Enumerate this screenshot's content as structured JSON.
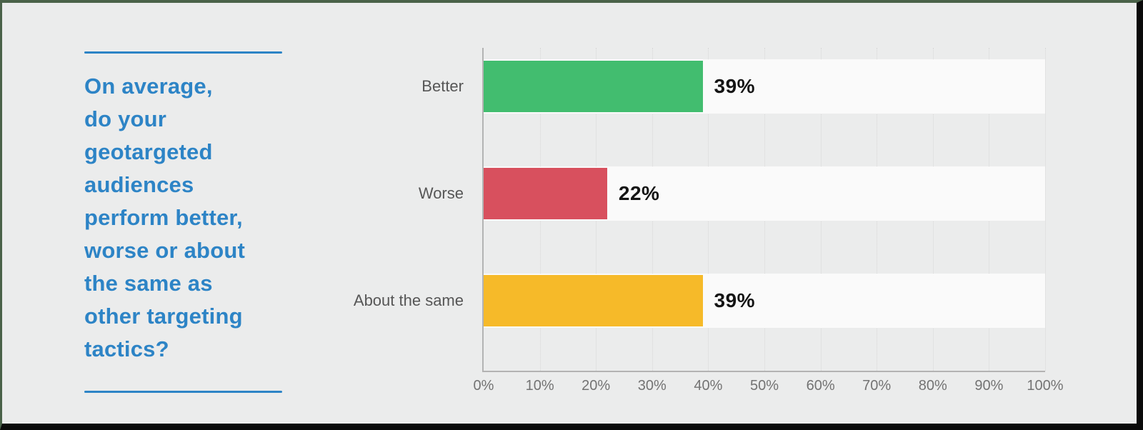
{
  "frame": {
    "background": "#ebecec",
    "border_top_left_color": "#4a6249",
    "border_bottom_right_color": "#0a0a0a"
  },
  "question": {
    "accent_color": "#2d84c6",
    "text": "On average, do your geotargeted audiences perform better, worse or about the same as other targeting tactics?",
    "text_lines": [
      "On average,",
      "do your",
      "geotargeted",
      "audiences",
      "perform better,",
      "worse or about",
      "the same as",
      "other targeting",
      "tactics?"
    ]
  },
  "chart_data": {
    "type": "bar",
    "orientation": "horizontal",
    "title": "",
    "xlabel": "",
    "ylabel": "",
    "categories": [
      "Better",
      "Worse",
      "About the same"
    ],
    "values": [
      39,
      22,
      39
    ],
    "value_labels": [
      "39%",
      "22%",
      "39%"
    ],
    "bar_colors": [
      "#42bd6f",
      "#d8505e",
      "#f6ba29"
    ],
    "track_color": "#fafafa",
    "xlim": [
      0,
      100
    ],
    "x_ticks": [
      "0%",
      "10%",
      "20%",
      "30%",
      "40%",
      "50%",
      "60%",
      "70%",
      "80%",
      "90%",
      "100%"
    ],
    "grid": "vertical-dotted",
    "legend": "none"
  }
}
